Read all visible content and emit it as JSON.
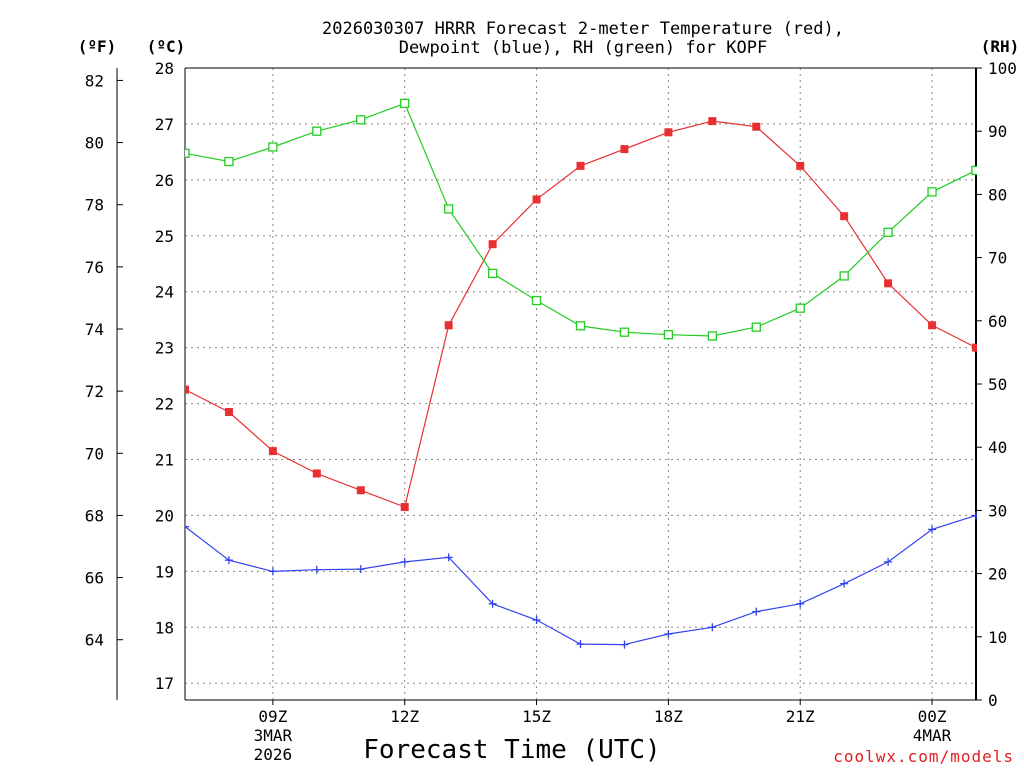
{
  "chart_data": {
    "type": "line",
    "title_line1": "2026030307 HRRR Forecast 2-meter Temperature (red),",
    "title_line2": "Dewpoint (blue), RH (green) for KOPF",
    "xlabel": "Forecast Time (UTC)",
    "credit": "coolwx.com/models",
    "units": {
      "fahrenheit": "(ºF)",
      "celsius": "(ºC)",
      "rh": "(RH)"
    },
    "x_hours": [
      7,
      8,
      9,
      10,
      11,
      12,
      13,
      14,
      15,
      16,
      17,
      18,
      19,
      20,
      21,
      22,
      23,
      24,
      25
    ],
    "x_range": [
      7,
      25
    ],
    "x_ticks": [
      {
        "hour": 9,
        "label": "09Z",
        "sub1": "3MAR",
        "sub2": "2026"
      },
      {
        "hour": 12,
        "label": "12Z",
        "sub1": "",
        "sub2": ""
      },
      {
        "hour": 15,
        "label": "15Z",
        "sub1": "",
        "sub2": ""
      },
      {
        "hour": 18,
        "label": "18Z",
        "sub1": "",
        "sub2": ""
      },
      {
        "hour": 21,
        "label": "21Z",
        "sub1": "",
        "sub2": ""
      },
      {
        "hour": 24,
        "label": "00Z",
        "sub1": "4MAR",
        "sub2": ""
      }
    ],
    "celsius_axis": {
      "range": [
        16.7,
        28
      ],
      "ticks": [
        17,
        18,
        19,
        20,
        21,
        22,
        23,
        24,
        25,
        26,
        27,
        28
      ]
    },
    "fahrenheit_axis": {
      "ticks": [
        64,
        66,
        68,
        70,
        72,
        74,
        76,
        78,
        80,
        82
      ]
    },
    "rh_axis": {
      "range": [
        0,
        100
      ],
      "ticks": [
        0,
        10,
        20,
        30,
        40,
        50,
        60,
        70,
        80,
        90,
        100
      ]
    },
    "series": [
      {
        "name": "2-meter Temperature",
        "color": "#e83030",
        "axis": "celsius",
        "marker": "filled-square",
        "values": [
          22.25,
          21.85,
          21.15,
          20.75,
          20.45,
          20.15,
          23.4,
          24.85,
          25.65,
          26.25,
          26.55,
          26.85,
          27.05,
          26.95,
          26.25,
          25.35,
          24.15,
          23.4,
          23.0
        ]
      },
      {
        "name": "Dewpoint",
        "color": "#3344ee",
        "axis": "celsius",
        "marker": "plus",
        "values": [
          19.8,
          19.2,
          19.0,
          19.03,
          19.04,
          19.17,
          19.25,
          18.42,
          18.13,
          17.7,
          17.69,
          17.88,
          18.0,
          18.28,
          18.42,
          18.78,
          19.17,
          19.75,
          20.0
        ]
      },
      {
        "name": "RH",
        "color": "#22cc22",
        "axis": "rh",
        "marker": "open-square",
        "values": [
          86.5,
          85.2,
          87.5,
          90.0,
          91.8,
          94.4,
          77.7,
          67.5,
          63.2,
          59.2,
          58.2,
          57.8,
          57.6,
          59.0,
          62.0,
          67.1,
          74.0,
          80.4,
          83.8
        ]
      }
    ]
  }
}
